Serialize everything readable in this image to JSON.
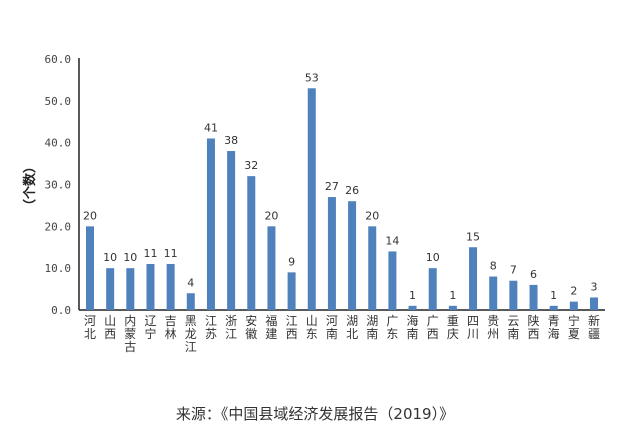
{
  "chart_data": {
    "type": "bar",
    "title": "",
    "xlabel": "",
    "ylabel": "（个数）",
    "ylim": [
      0,
      60
    ],
    "yticks": [
      "0.0",
      "10.0",
      "20.0",
      "30.0",
      "40.0",
      "50.0",
      "60.0"
    ],
    "grid": false,
    "bar_color": "#4f81bd",
    "categories": [
      "河北",
      "山西",
      "内蒙古",
      "辽宁",
      "吉林",
      "黑龙江",
      "江苏",
      "浙江",
      "安徽",
      "福建",
      "江西",
      "山东",
      "河南",
      "湖北",
      "湖南",
      "广东",
      "海南",
      "广西",
      "重庆",
      "四川",
      "贵州",
      "云南",
      "陕西",
      "青海",
      "宁夏",
      "新疆"
    ],
    "values": [
      20,
      10,
      10,
      11,
      11,
      4,
      41,
      38,
      32,
      20,
      9,
      53,
      27,
      26,
      20,
      14,
      1,
      10,
      1,
      15,
      8,
      7,
      6,
      1,
      2,
      3
    ]
  },
  "caption": "来源：《中国县域经济发展报告（2019）》"
}
